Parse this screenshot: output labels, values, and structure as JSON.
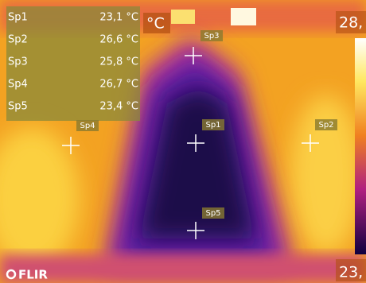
{
  "measurements": [
    {
      "label": "Sp1",
      "value": "23,1 °C"
    },
    {
      "label": "Sp2",
      "value": "26,6 °C"
    },
    {
      "label": "Sp3",
      "value": "25,8 °C"
    },
    {
      "label": "Sp4",
      "value": "26,7 °C"
    },
    {
      "label": "Sp5",
      "value": "23,4 °C"
    }
  ],
  "unit": "°C",
  "scale_max": "28,",
  "scale_min": "23,",
  "spots": [
    "Sp1",
    "Sp2",
    "Sp3",
    "Sp4",
    "Sp5"
  ],
  "logo": "FLIR"
}
